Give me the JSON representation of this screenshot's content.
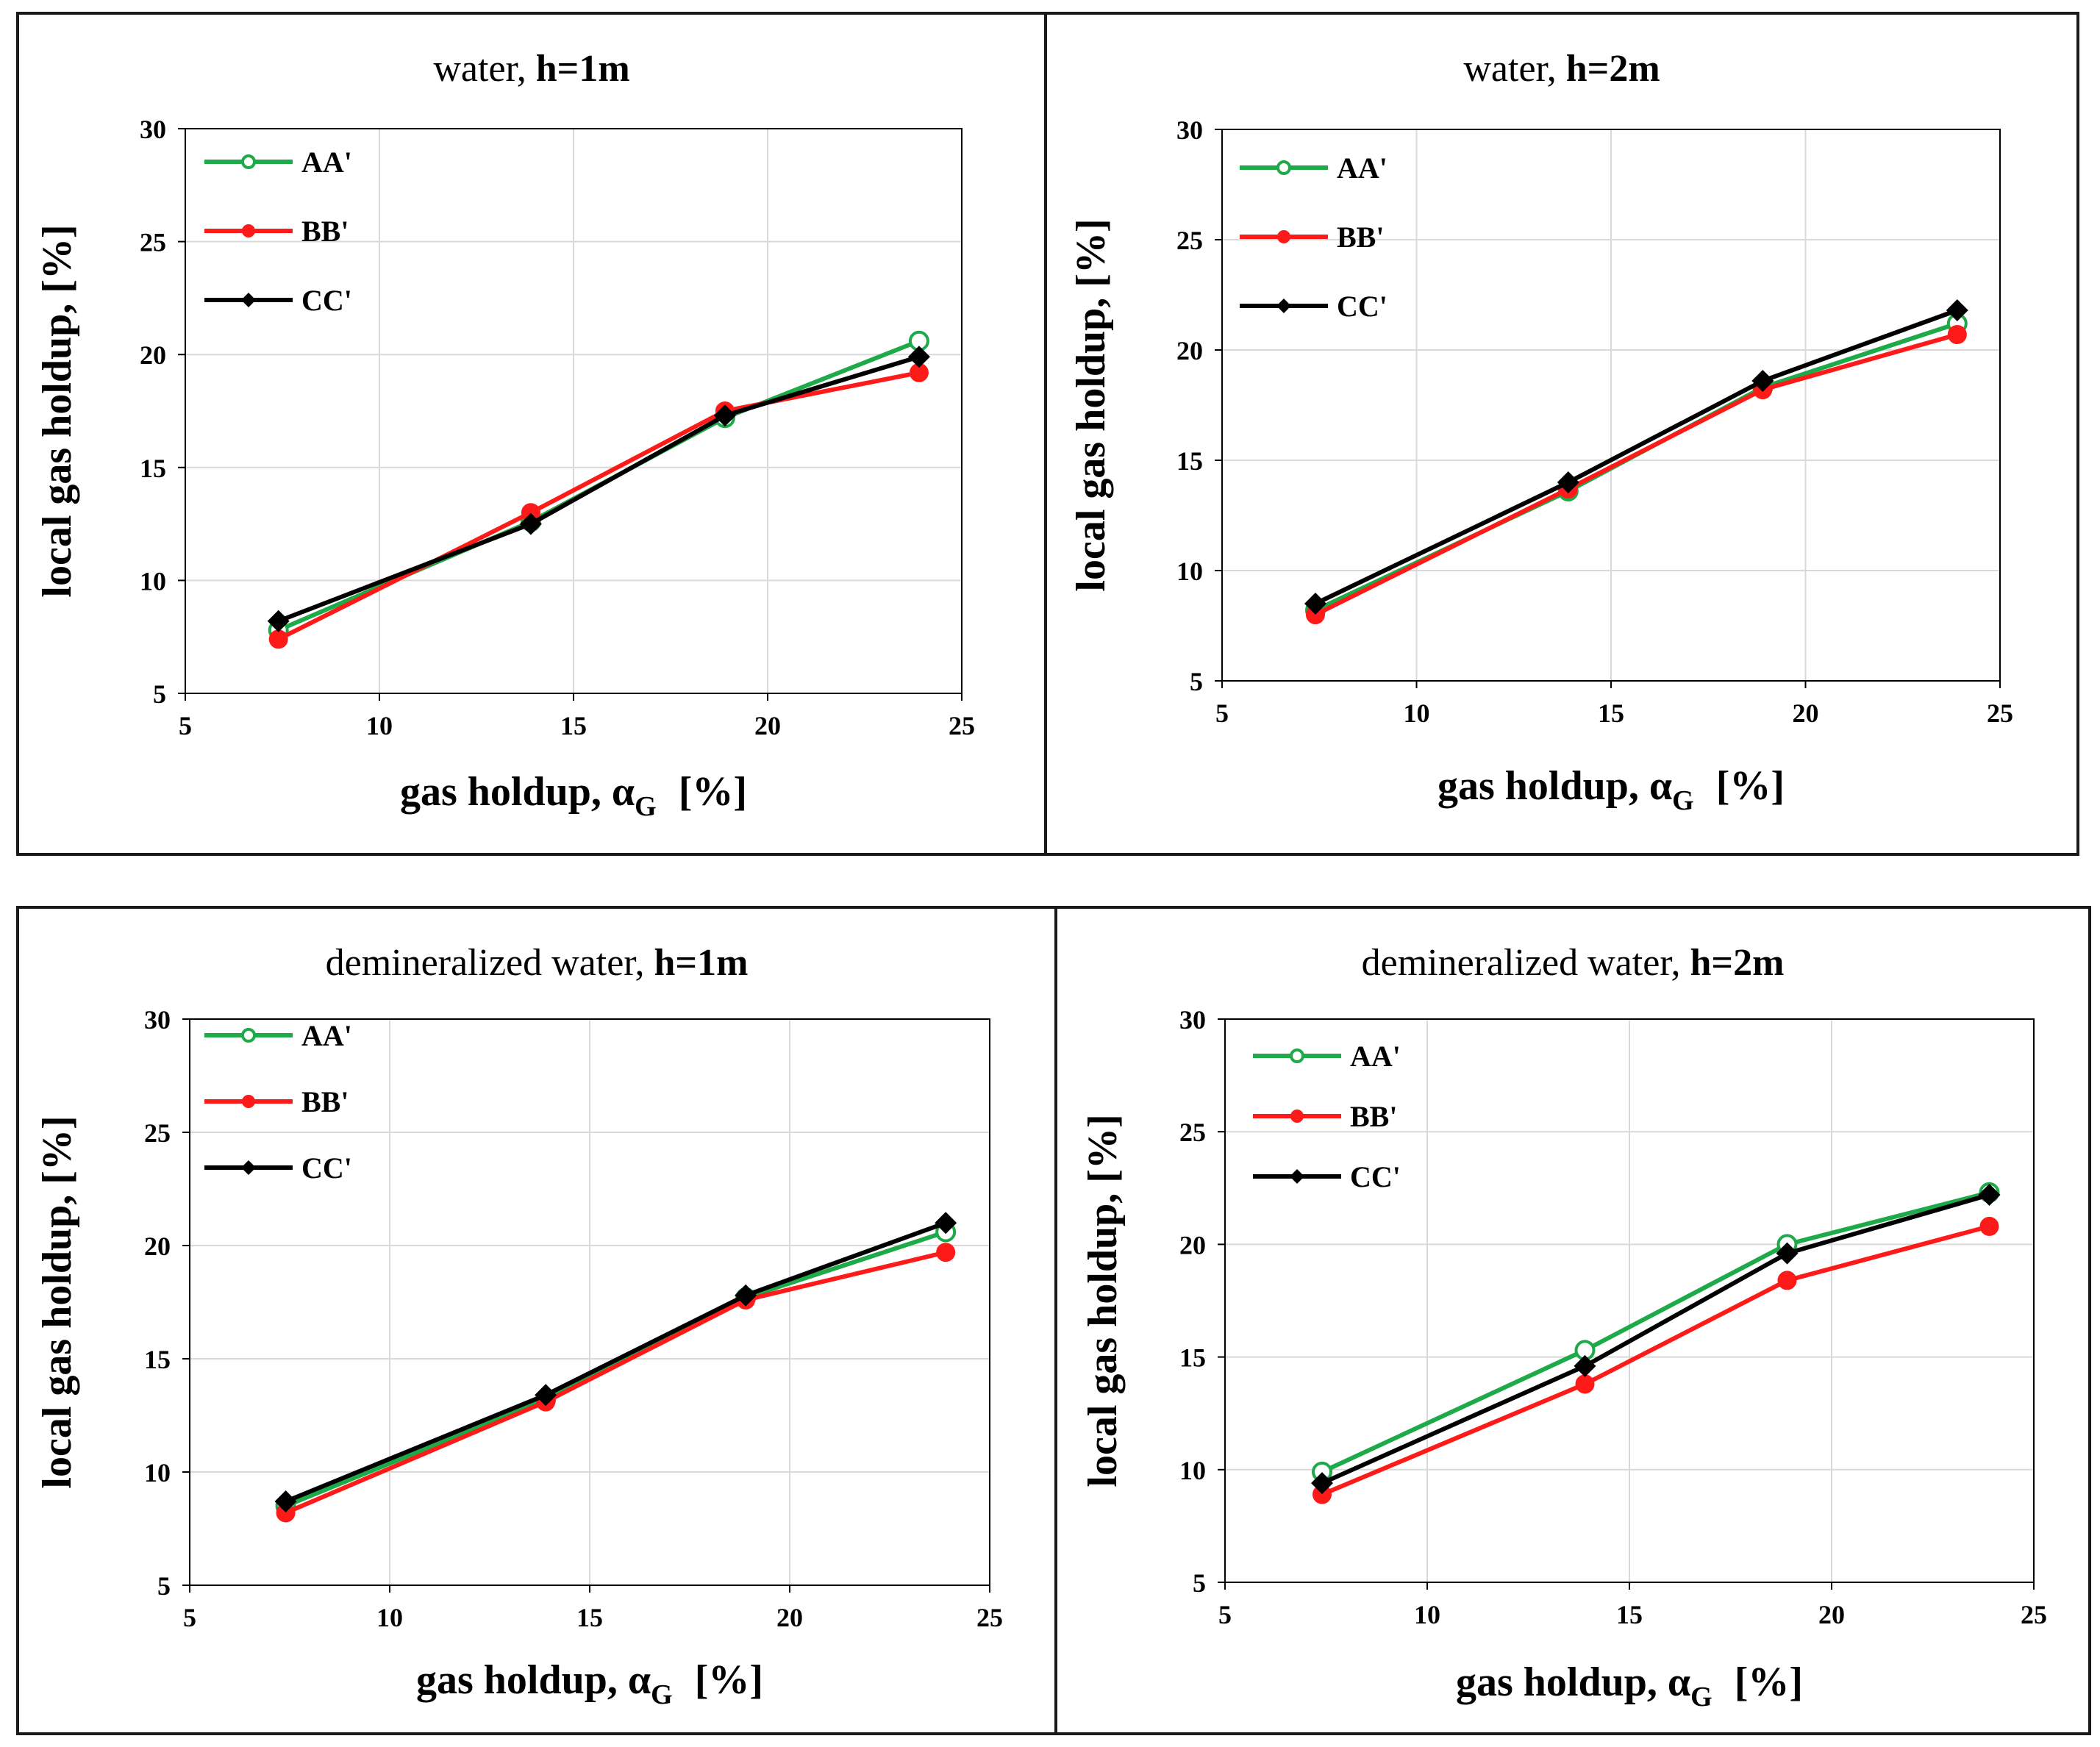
{
  "chart_data": [
    {
      "type": "line",
      "title": "water, ",
      "title_bold": "h=1m",
      "xlabel": "gas holdup, α",
      "xlabel_sub": "G",
      "xlabel_unit": "[%]",
      "ylabel": "local gas holdup, [%]",
      "xlim": [
        5,
        25
      ],
      "ylim": [
        5,
        30
      ],
      "xticks": [
        5,
        10,
        15,
        20,
        25
      ],
      "yticks": [
        5,
        10,
        15,
        20,
        25,
        30
      ],
      "grid": true,
      "legend": "top-left",
      "x": [
        7.4,
        13.9,
        18.9,
        23.9
      ],
      "series": [
        {
          "name": "AA'",
          "color": "#1faa4a",
          "marker": "open-circle",
          "values": [
            7.8,
            12.6,
            17.2,
            20.6
          ]
        },
        {
          "name": "BB'",
          "color": "#ff1a1a",
          "marker": "filled-circle",
          "values": [
            7.4,
            13.0,
            17.5,
            19.2
          ]
        },
        {
          "name": "CC'",
          "color": "#000000",
          "marker": "diamond",
          "values": [
            8.2,
            12.5,
            17.3,
            19.9
          ]
        }
      ]
    },
    {
      "type": "line",
      "title": "water, ",
      "title_bold": "h=2m",
      "xlabel": "gas holdup, α",
      "xlabel_sub": "G",
      "xlabel_unit": "[%]",
      "ylabel": "local gas holdup, [%]",
      "xlim": [
        5,
        25
      ],
      "ylim": [
        5,
        30
      ],
      "xticks": [
        5,
        10,
        15,
        20,
        25
      ],
      "yticks": [
        5,
        10,
        15,
        20,
        25,
        30
      ],
      "grid": true,
      "legend": "top-left",
      "x": [
        7.4,
        13.9,
        18.9,
        23.9
      ],
      "series": [
        {
          "name": "AA'",
          "color": "#1faa4a",
          "marker": "open-circle",
          "values": [
            8.2,
            13.6,
            18.3,
            21.2
          ]
        },
        {
          "name": "BB'",
          "color": "#ff1a1a",
          "marker": "filled-circle",
          "values": [
            8.0,
            13.7,
            18.2,
            20.7
          ]
        },
        {
          "name": "CC'",
          "color": "#000000",
          "marker": "diamond",
          "values": [
            8.5,
            14.0,
            18.6,
            21.8
          ]
        }
      ]
    },
    {
      "type": "line",
      "title": "demineralized water, ",
      "title_bold": "h=1m",
      "xlabel": "gas holdup, α",
      "xlabel_sub": "G",
      "xlabel_unit": "[%]",
      "ylabel": "local gas holdup, [%]",
      "xlim": [
        5,
        25
      ],
      "ylim": [
        5,
        30
      ],
      "xticks": [
        5,
        10,
        15,
        20,
        25
      ],
      "yticks": [
        5,
        10,
        15,
        20,
        25,
        30
      ],
      "grid": true,
      "legend": "top-left",
      "x": [
        7.4,
        13.9,
        18.9,
        23.9
      ],
      "series": [
        {
          "name": "AA'",
          "color": "#1faa4a",
          "marker": "open-circle",
          "values": [
            8.5,
            13.2,
            17.7,
            20.6
          ]
        },
        {
          "name": "BB'",
          "color": "#ff1a1a",
          "marker": "filled-circle",
          "values": [
            8.2,
            13.1,
            17.6,
            19.7
          ]
        },
        {
          "name": "CC'",
          "color": "#000000",
          "marker": "diamond",
          "values": [
            8.7,
            13.4,
            17.8,
            21.0
          ]
        }
      ]
    },
    {
      "type": "line",
      "title": "demineralized water, ",
      "title_bold": "h=2m",
      "xlabel": "gas holdup, α",
      "xlabel_sub": "G",
      "xlabel_unit": "[%]",
      "ylabel": "local gas holdup, [%]",
      "xlim": [
        5,
        25
      ],
      "ylim": [
        5,
        30
      ],
      "xticks": [
        5,
        10,
        15,
        20,
        25
      ],
      "yticks": [
        5,
        10,
        15,
        20,
        25,
        30
      ],
      "grid": true,
      "legend": "top-left",
      "x": [
        7.4,
        13.9,
        18.9,
        23.9
      ],
      "series": [
        {
          "name": "AA'",
          "color": "#1faa4a",
          "marker": "open-circle",
          "values": [
            9.9,
            15.3,
            20.0,
            22.3
          ]
        },
        {
          "name": "BB'",
          "color": "#ff1a1a",
          "marker": "filled-circle",
          "values": [
            8.9,
            13.8,
            18.4,
            20.8
          ]
        },
        {
          "name": "CC'",
          "color": "#000000",
          "marker": "diamond",
          "values": [
            9.4,
            14.6,
            19.6,
            22.2
          ]
        }
      ]
    }
  ]
}
